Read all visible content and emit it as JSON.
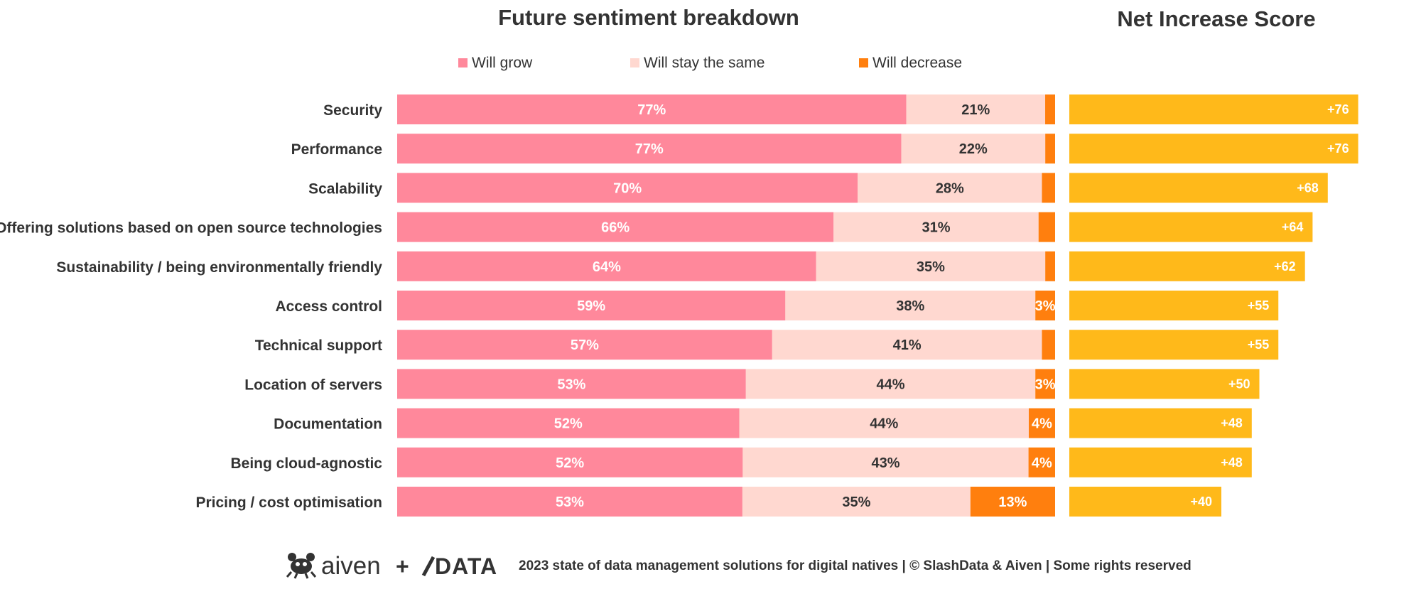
{
  "chart_data": [
    {
      "type": "bar",
      "stacked": true,
      "orientation": "horizontal",
      "title": "Future sentiment breakdown",
      "legend_position": "top",
      "categories": [
        "Security",
        "Performance",
        "Scalability",
        "Offering solutions based on open source technologies",
        "Sustainability / being environmentally friendly",
        "Access control",
        "Technical support",
        "Location of servers",
        "Documentation",
        "Being cloud-agnostic",
        "Pricing / cost optimisation"
      ],
      "series": [
        {
          "name": "Will grow",
          "color": "#FF889B",
          "values": [
            77,
            77,
            70,
            66,
            64,
            59,
            57,
            53,
            52,
            52,
            53
          ],
          "labels": [
            "77%",
            "77%",
            "70%",
            "66%",
            "64%",
            "59%",
            "57%",
            "53%",
            "52%",
            "52%",
            "53%"
          ]
        },
        {
          "name": "Will stay the same",
          "color": "#FFD8D0",
          "values": [
            21,
            22,
            28,
            31,
            35,
            38,
            41,
            44,
            44,
            43,
            35
          ],
          "labels": [
            "21%",
            "22%",
            "28%",
            "31%",
            "35%",
            "38%",
            "41%",
            "44%",
            "44%",
            "43%",
            "35%"
          ]
        },
        {
          "name": "Will decrease",
          "color": "#FF7F0E",
          "values": [
            1.5,
            1.5,
            2,
            2.5,
            1.5,
            3,
            2,
            3,
            4,
            4,
            13
          ],
          "labels": [
            "",
            "",
            "",
            "",
            "",
            "3%",
            "",
            "3%",
            "4%",
            "4%",
            "13%"
          ]
        }
      ],
      "xlim": [
        0,
        100
      ],
      "grid": false
    },
    {
      "type": "bar",
      "orientation": "horizontal",
      "title": "Net Increase Score",
      "color": "#FFB91A",
      "categories": [
        "Security",
        "Performance",
        "Scalability",
        "Offering solutions based on open source technologies",
        "Sustainability / being environmentally friendly",
        "Access control",
        "Technical support",
        "Location of servers",
        "Documentation",
        "Being cloud-agnostic",
        "Pricing / cost optimisation"
      ],
      "values": [
        76,
        76,
        68,
        64,
        62,
        55,
        55,
        50,
        48,
        48,
        40
      ],
      "labels": [
        "+76",
        "+76",
        "+68",
        "+64",
        "+62",
        "+55",
        "+55",
        "+50",
        "+48",
        "+48",
        "+40"
      ],
      "xlim": [
        0,
        80
      ],
      "grid": false
    }
  ],
  "footer": {
    "brand_left": "aiven",
    "plus": "+",
    "brand_right": "DATA",
    "text": "2023 state of data management solutions for digital natives | © SlashData & Aiven | Some rights reserved"
  },
  "icons": {
    "brand_left_icon": "crab-icon",
    "brand_right_icon": "slashdata-logo-icon"
  }
}
